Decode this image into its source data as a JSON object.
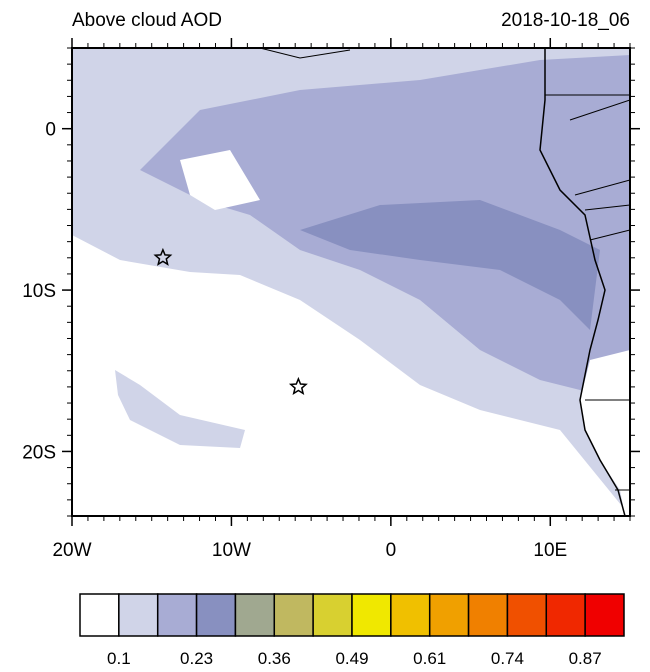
{
  "chart_data": {
    "type": "map",
    "title": "Above cloud AOD",
    "subtitle": "2018-10-18_06",
    "xlim": [
      -20,
      15
    ],
    "ylim": [
      -24,
      5
    ],
    "xticks": [
      {
        "value": -20,
        "label": "20W"
      },
      {
        "value": -10,
        "label": "10W"
      },
      {
        "value": 0,
        "label": "0"
      },
      {
        "value": 10,
        "label": "10E"
      }
    ],
    "yticks": [
      {
        "value": 0,
        "label": "0"
      },
      {
        "value": -10,
        "label": "10S"
      },
      {
        "value": -20,
        "label": "20S"
      }
    ],
    "markers": {
      "x": [
        -14.3,
        -5.8
      ],
      "y": [
        -8,
        -16
      ]
    },
    "colorbar": {
      "colors": [
        "#ffffff",
        "#d0d4e8",
        "#a8acd4",
        "#8890c0",
        "#a0a890",
        "#c0b860",
        "#d8d030",
        "#f0e800",
        "#f0c000",
        "#f0a000",
        "#f08000",
        "#f05000",
        "#f02800",
        "#f00000"
      ],
      "ticks": [
        0.1,
        0.23,
        0.36,
        0.49,
        0.61,
        0.74,
        0.87
      ]
    }
  }
}
